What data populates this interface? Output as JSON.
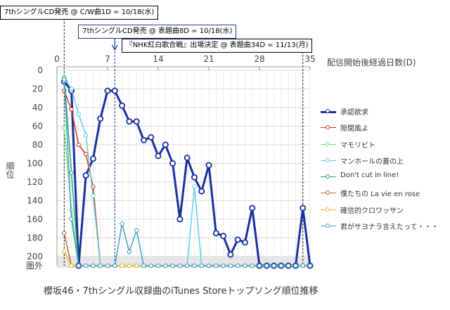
{
  "chart_data": {
    "type": "line",
    "title": "櫻坂46・7thシングル収録曲のiTunes Storeトップソング順位推移",
    "xlabel": "配信開始後経過日数(D)",
    "ylabel": "順位",
    "x_ticks": [
      "0",
      "7",
      "14",
      "21",
      "28",
      "35"
    ],
    "y_ticks": [
      "0",
      "20",
      "40",
      "60",
      "80",
      "100",
      "120",
      "140",
      "160",
      "180",
      "200"
    ],
    "y_out_label": "圏外",
    "xlim": [
      0,
      35
    ],
    "ylim": [
      0,
      210
    ],
    "y_inverted": true,
    "out_of_rank_value": 210,
    "grid": true,
    "legend_position": "right",
    "annotations": [
      {
        "text": "7thシングルCD発売 @ C/W曲1D = 10/18(水)",
        "x": 1,
        "style": "black"
      },
      {
        "text": "7thシングルCD発売 @ 表題曲8D = 10/18(水)",
        "x": 8,
        "style": "blue"
      },
      {
        "text": "『NHK紅白歌合戦』出場決定 @ 表題曲34D = 11/13(月)",
        "x": 34,
        "style": "black"
      }
    ],
    "series": [
      {
        "name": "承認欲求",
        "color": "#1a2f9e",
        "width": 3,
        "x_start": 1,
        "values": [
          12,
          22,
          210,
          113,
          95,
          52,
          22,
          22,
          38,
          55,
          55,
          75,
          72,
          92,
          80,
          100,
          160,
          94,
          115,
          130,
          102,
          175,
          178,
          198,
          182,
          185,
          148,
          210,
          210,
          210,
          210,
          210,
          210,
          148,
          210
        ]
      },
      {
        "name": "隙間風よ",
        "color": "#d9301f",
        "width": 1.5,
        "x_start": 1,
        "values": [
          22,
          42,
          80,
          90,
          125,
          210,
          210
        ]
      },
      {
        "name": "マモリビト",
        "color": "#6ee36e",
        "width": 1.5,
        "x_start": 1,
        "values": [
          62,
          150,
          210
        ]
      },
      {
        "name": "マンホールの蓋の上",
        "color": "#5fd0e6",
        "width": 1.5,
        "x_start": 1,
        "values": [
          8,
          20,
          47,
          70,
          135,
          210,
          210,
          210,
          210,
          210,
          210,
          210,
          210,
          210,
          210,
          210,
          210,
          210,
          125,
          210,
          210,
          210,
          210,
          210,
          210,
          210,
          210,
          210,
          210,
          210,
          210,
          210,
          210,
          210,
          210
        ]
      },
      {
        "name": "Don't cut in line!",
        "color": "#23a66a",
        "width": 1.5,
        "x_start": 1,
        "values": [
          8,
          110,
          210
        ]
      },
      {
        "name": "僕たちの La vie en rose",
        "color": "#b06a2e",
        "width": 1.5,
        "x_start": 1,
        "values": [
          175,
          210,
          210
        ]
      },
      {
        "name": "確信的クロワッサン",
        "color": "#f0b429",
        "width": 1.5,
        "x_start": 1,
        "values": [
          195,
          210,
          210,
          210,
          210,
          210,
          210,
          210,
          210,
          210,
          210,
          210,
          210,
          210,
          210,
          210,
          210,
          210,
          210,
          210,
          210,
          210,
          210,
          210,
          210,
          210,
          210,
          210,
          210,
          210,
          210,
          210,
          210,
          210,
          210
        ]
      },
      {
        "name": "君がサヨナラ言えたって・・・",
        "color": "#3fa0c8",
        "width": 1.5,
        "x_start": 1,
        "values": [
          10,
          160,
          210,
          210,
          210,
          210,
          210,
          210,
          165,
          195,
          172,
          210,
          210,
          210,
          210,
          210,
          210,
          210,
          210,
          210,
          210,
          210,
          210,
          210,
          210,
          210,
          210,
          210,
          210,
          210,
          210,
          210,
          210,
          210,
          210
        ]
      }
    ]
  }
}
